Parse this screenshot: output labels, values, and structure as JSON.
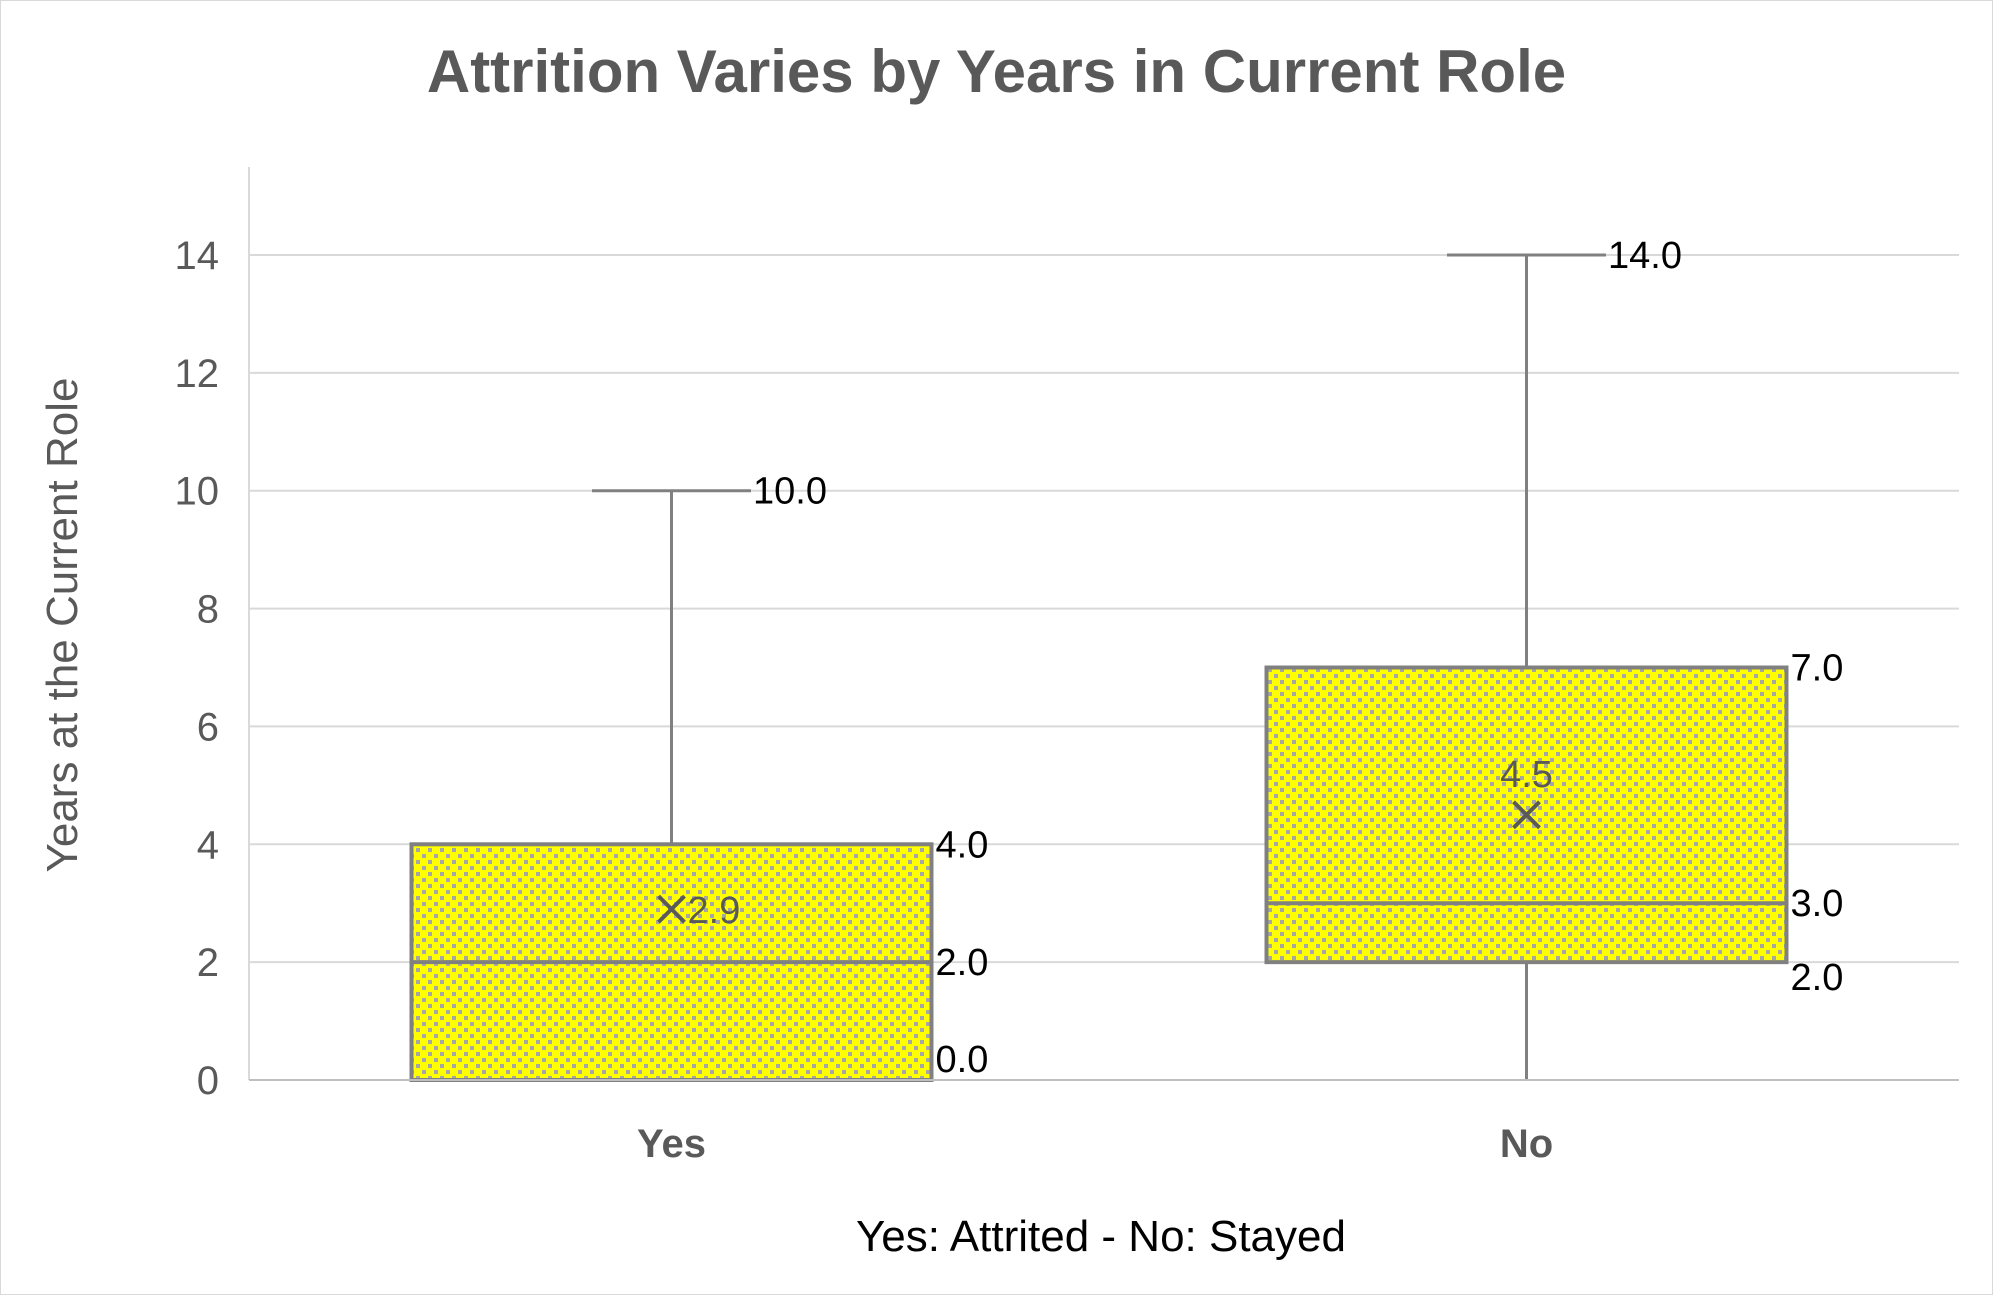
{
  "chart_data": {
    "type": "box",
    "title": "Attrition Varies by Years in Current Role",
    "xlabel": "Yes: Attrited - No: Stayed",
    "ylabel": "Years at the Current Role",
    "ylim": [
      0,
      15
    ],
    "yticks": [
      0,
      2,
      4,
      6,
      8,
      10,
      12,
      14
    ],
    "grid": true,
    "legend": "none",
    "fill_color": "#ffff00",
    "fill_pattern_color": "#a6a6a6",
    "line_color": "#808080",
    "categories": [
      "Yes",
      "No"
    ],
    "boxes": [
      {
        "category": "Yes",
        "min": 0.0,
        "q1": 0.0,
        "median": 2.0,
        "q3": 4.0,
        "max": 10.0,
        "mean": 2.9,
        "labels": {
          "max": "10.0",
          "q3": "4.0",
          "median": "2.0",
          "q1": "0.0",
          "mean": "2.9"
        }
      },
      {
        "category": "No",
        "min": 0.0,
        "q1": 2.0,
        "median": 3.0,
        "q3": 7.0,
        "max": 14.0,
        "mean": 4.5,
        "labels": {
          "max": "14.0",
          "q3": "7.0",
          "median": "3.0",
          "q1": "2.0",
          "mean": "4.5"
        }
      }
    ]
  }
}
